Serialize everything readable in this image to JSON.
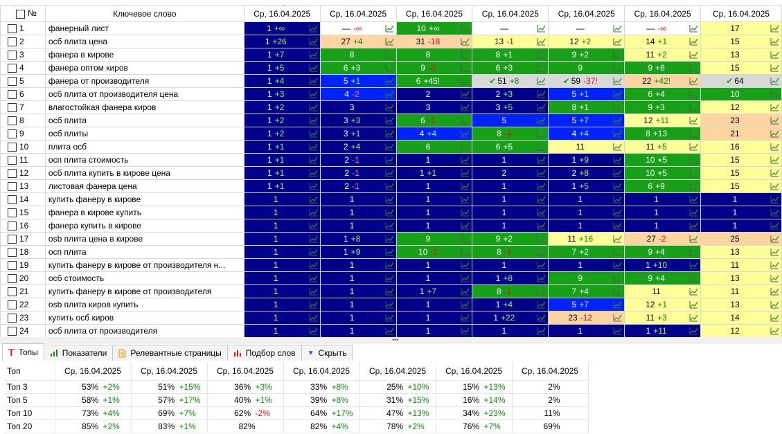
{
  "header": {
    "num": "№",
    "keyword": "Ключевое слово",
    "dates": [
      "Ср, 16.04.2025",
      "Ср, 16.04.2025",
      "Ср, 16.04.2025",
      "Ср, 16.04.2025",
      "Ср, 16.04.2025",
      "Ср, 16.04.2025",
      "Ср, 16.04.2025"
    ]
  },
  "colors": {
    "dark": "#00008b",
    "blue": "#0022ff",
    "green": "#18a018",
    "yellow": "#ffff99",
    "orange": "#fcd5a0",
    "gray": "#d9d9d9"
  },
  "rows": [
    {
      "n": "1",
      "kw": "фанерный лист",
      "cells": [
        [
          "1",
          "+∞",
          "dark"
        ],
        [
          "—",
          "-∞",
          "white"
        ],
        [
          "10",
          "+∞",
          "green"
        ],
        [
          "—",
          "",
          "white"
        ],
        [
          "—",
          "",
          "white"
        ],
        [
          "—",
          "-∞",
          "white"
        ],
        [
          "17",
          "",
          "yellow"
        ]
      ]
    },
    {
      "n": "2",
      "kw": "осб плита цена",
      "cells": [
        [
          "1",
          "+26",
          "dark"
        ],
        [
          "27",
          "+4",
          "orange"
        ],
        [
          "31",
          "-18",
          "orange"
        ],
        [
          "13",
          "-1",
          "yellow"
        ],
        [
          "12",
          "+2",
          "yellow"
        ],
        [
          "14",
          "+1",
          "yellow"
        ],
        [
          "15",
          "",
          "yellow"
        ]
      ]
    },
    {
      "n": "3",
      "kw": "фанера в кирове",
      "cells": [
        [
          "1",
          "+7",
          "dark"
        ],
        [
          "8",
          "",
          "green"
        ],
        [
          "8",
          "",
          "green"
        ],
        [
          "8",
          "+1",
          "green"
        ],
        [
          "9",
          "+2",
          "green"
        ],
        [
          "11",
          "+2",
          "yellow"
        ],
        [
          "13",
          "",
          "yellow"
        ]
      ]
    },
    {
      "n": "4",
      "kw": "фанера оптом киров",
      "cells": [
        [
          "1",
          "+5",
          "dark"
        ],
        [
          "6",
          "+3",
          "green"
        ],
        [
          "9",
          "-3",
          "green"
        ],
        [
          "6",
          "+3",
          "green"
        ],
        [
          "9",
          "",
          "green"
        ],
        [
          "9",
          "+6",
          "green"
        ],
        [
          "15",
          "",
          "yellow"
        ]
      ]
    },
    {
      "n": "5",
      "kw": "фанера от производителя",
      "cells": [
        [
          "1",
          "+4",
          "dark"
        ],
        [
          "5",
          "+1",
          "blue"
        ],
        [
          "6",
          "+45!",
          "green"
        ],
        [
          "✔ 51",
          "+8",
          "gray"
        ],
        [
          "✔ 59",
          "-37!",
          "gray"
        ],
        [
          "22",
          "+42!",
          "orange"
        ],
        [
          "✔ 64",
          "",
          "gray"
        ]
      ]
    },
    {
      "n": "6",
      "kw": "осб плита от производителя цена",
      "cells": [
        [
          "1",
          "+3",
          "dark"
        ],
        [
          "4",
          "-2",
          "blue"
        ],
        [
          "2",
          "",
          "dark"
        ],
        [
          "2",
          "+3",
          "dark"
        ],
        [
          "5",
          "+1",
          "blue"
        ],
        [
          "6",
          "+4",
          "green"
        ],
        [
          "10",
          "",
          "green"
        ]
      ]
    },
    {
      "n": "7",
      "kw": "влагостойкая фанера киров",
      "cells": [
        [
          "1",
          "+2",
          "dark"
        ],
        [
          "3",
          "",
          "dark"
        ],
        [
          "3",
          "",
          "dark"
        ],
        [
          "3",
          "+5",
          "dark"
        ],
        [
          "8",
          "+1",
          "green"
        ],
        [
          "9",
          "+3",
          "green"
        ],
        [
          "12",
          "",
          "yellow"
        ]
      ]
    },
    {
      "n": "8",
      "kw": "осб плита",
      "cells": [
        [
          "1",
          "+2",
          "dark"
        ],
        [
          "3",
          "+3",
          "dark"
        ],
        [
          "6",
          "-1",
          "green"
        ],
        [
          "5",
          "",
          "blue"
        ],
        [
          "5",
          "+7",
          "blue"
        ],
        [
          "12",
          "+11",
          "yellow"
        ],
        [
          "23",
          "",
          "orange"
        ]
      ]
    },
    {
      "n": "9",
      "kw": "осб плиты",
      "cells": [
        [
          "1",
          "+2",
          "dark"
        ],
        [
          "3",
          "+1",
          "dark"
        ],
        [
          "4",
          "+4",
          "blue"
        ],
        [
          "8",
          "-4",
          "green"
        ],
        [
          "4",
          "+4",
          "blue"
        ],
        [
          "8",
          "+13",
          "green"
        ],
        [
          "21",
          "",
          "orange"
        ]
      ]
    },
    {
      "n": "10",
      "kw": "плита осб",
      "cells": [
        [
          "1",
          "+1",
          "dark"
        ],
        [
          "2",
          "+4",
          "dark"
        ],
        [
          "6",
          "",
          "green"
        ],
        [
          "6",
          "+5",
          "green"
        ],
        [
          "11",
          "",
          "yellow"
        ],
        [
          "11",
          "+5",
          "yellow"
        ],
        [
          "16",
          "",
          "yellow"
        ]
      ]
    },
    {
      "n": "11",
      "kw": "осп плита стоимость",
      "cells": [
        [
          "1",
          "+1",
          "dark"
        ],
        [
          "2",
          "-1",
          "dark"
        ],
        [
          "1",
          "",
          "dark"
        ],
        [
          "1",
          "",
          "dark"
        ],
        [
          "1",
          "+9",
          "dark"
        ],
        [
          "10",
          "+5",
          "green"
        ],
        [
          "15",
          "",
          "yellow"
        ]
      ]
    },
    {
      "n": "12",
      "kw": "осб плита купить в кирове цена",
      "cells": [
        [
          "1",
          "+1",
          "dark"
        ],
        [
          "2",
          "-1",
          "dark"
        ],
        [
          "1",
          "+1",
          "dark"
        ],
        [
          "2",
          "",
          "dark"
        ],
        [
          "2",
          "+8",
          "dark"
        ],
        [
          "10",
          "+5",
          "green"
        ],
        [
          "15",
          "",
          "yellow"
        ]
      ]
    },
    {
      "n": "13",
      "kw": "листовая фанера цена",
      "cells": [
        [
          "1",
          "+1",
          "dark"
        ],
        [
          "2",
          "-1",
          "dark"
        ],
        [
          "1",
          "",
          "dark"
        ],
        [
          "1",
          "",
          "dark"
        ],
        [
          "1",
          "+5",
          "dark"
        ],
        [
          "6",
          "+9",
          "green"
        ],
        [
          "15",
          "",
          "yellow"
        ]
      ]
    },
    {
      "n": "14",
      "kw": "купить фанеру в кирове",
      "cells": [
        [
          "1",
          "",
          "dark"
        ],
        [
          "1",
          "",
          "dark"
        ],
        [
          "1",
          "",
          "dark"
        ],
        [
          "1",
          "",
          "dark"
        ],
        [
          "1",
          "",
          "dark"
        ],
        [
          "1",
          "",
          "dark"
        ],
        [
          "1",
          "",
          "dark"
        ]
      ]
    },
    {
      "n": "15",
      "kw": "фанера в кирове купить",
      "cells": [
        [
          "1",
          "",
          "dark"
        ],
        [
          "1",
          "",
          "dark"
        ],
        [
          "1",
          "",
          "dark"
        ],
        [
          "1",
          "",
          "dark"
        ],
        [
          "1",
          "",
          "dark"
        ],
        [
          "1",
          "",
          "dark"
        ],
        [
          "1",
          "",
          "dark"
        ]
      ]
    },
    {
      "n": "16",
      "kw": "фанера купить в кирове",
      "cells": [
        [
          "1",
          "",
          "dark"
        ],
        [
          "1",
          "",
          "dark"
        ],
        [
          "1",
          "",
          "dark"
        ],
        [
          "1",
          "",
          "dark"
        ],
        [
          "1",
          "",
          "dark"
        ],
        [
          "1",
          "",
          "dark"
        ],
        [
          "1",
          "",
          "dark"
        ]
      ]
    },
    {
      "n": "17",
      "kw": "osb плита цена в кирове",
      "cells": [
        [
          "1",
          "",
          "dark"
        ],
        [
          "1",
          "+8",
          "dark"
        ],
        [
          "9",
          "",
          "green"
        ],
        [
          "9",
          "+2",
          "green"
        ],
        [
          "11",
          "+16",
          "yellow"
        ],
        [
          "27",
          "-2",
          "orange"
        ],
        [
          "25",
          "",
          "orange"
        ]
      ]
    },
    {
      "n": "18",
      "kw": "осп плита",
      "cells": [
        [
          "1",
          "",
          "dark"
        ],
        [
          "1",
          "+9",
          "dark"
        ],
        [
          "10",
          "-2",
          "green"
        ],
        [
          "8",
          "-1",
          "green"
        ],
        [
          "7",
          "+2",
          "green"
        ],
        [
          "9",
          "+4",
          "green"
        ],
        [
          "13",
          "",
          "yellow"
        ]
      ]
    },
    {
      "n": "19",
      "kw": "купить фанеру в кирове от производителя н...",
      "cells": [
        [
          "1",
          "",
          "dark"
        ],
        [
          "1",
          "",
          "dark"
        ],
        [
          "1",
          "",
          "dark"
        ],
        [
          "1",
          "",
          "dark"
        ],
        [
          "1",
          "",
          "dark"
        ],
        [
          "1",
          "+10",
          "dark"
        ],
        [
          "11",
          "",
          "yellow"
        ]
      ]
    },
    {
      "n": "20",
      "kw": "осб стоимость",
      "cells": [
        [
          "1",
          "",
          "dark"
        ],
        [
          "1",
          "",
          "dark"
        ],
        [
          "1",
          "",
          "dark"
        ],
        [
          "1",
          "+8",
          "dark"
        ],
        [
          "9",
          "",
          "green"
        ],
        [
          "9",
          "+4",
          "green"
        ],
        [
          "13",
          "",
          "yellow"
        ]
      ]
    },
    {
      "n": "21",
      "kw": "купить фанеру в кирове от производителя",
      "cells": [
        [
          "1",
          "",
          "dark"
        ],
        [
          "1",
          "",
          "dark"
        ],
        [
          "1",
          "+7",
          "dark"
        ],
        [
          "8",
          "-1",
          "green"
        ],
        [
          "7",
          "+4",
          "green"
        ],
        [
          "11",
          "",
          "yellow"
        ],
        [
          "11",
          "",
          "yellow"
        ]
      ]
    },
    {
      "n": "22",
      "kw": "osb плита киров купить",
      "cells": [
        [
          "1",
          "",
          "dark"
        ],
        [
          "1",
          "",
          "dark"
        ],
        [
          "1",
          "",
          "dark"
        ],
        [
          "1",
          "+4",
          "dark"
        ],
        [
          "5",
          "+7",
          "blue"
        ],
        [
          "12",
          "+1",
          "yellow"
        ],
        [
          "13",
          "",
          "yellow"
        ]
      ]
    },
    {
      "n": "23",
      "kw": "купить осб киров",
      "cells": [
        [
          "1",
          "",
          "dark"
        ],
        [
          "1",
          "",
          "dark"
        ],
        [
          "1",
          "",
          "dark"
        ],
        [
          "1",
          "+22",
          "dark"
        ],
        [
          "23",
          "-12",
          "orange"
        ],
        [
          "11",
          "+3",
          "yellow"
        ],
        [
          "14",
          "",
          "yellow"
        ]
      ]
    },
    {
      "n": "24",
      "kw": "осб плита от производителя",
      "cells": [
        [
          "1",
          "",
          "dark"
        ],
        [
          "1",
          "",
          "dark"
        ],
        [
          "1",
          "",
          "dark"
        ],
        [
          "1",
          "",
          "dark"
        ],
        [
          "1",
          "",
          "dark"
        ],
        [
          "1",
          "+11",
          "dark"
        ],
        [
          "12",
          "",
          "yellow"
        ]
      ]
    }
  ],
  "tabs": [
    {
      "icon": "T",
      "label": "Топы",
      "active": true
    },
    {
      "icon": "bars",
      "label": "Показатели",
      "active": false
    },
    {
      "icon": "doc",
      "label": "Релевантные страницы",
      "active": false
    },
    {
      "icon": "bars-red",
      "label": "Подбор слов",
      "active": false
    },
    {
      "icon": "arrow-down",
      "label": "Скрыть",
      "active": false
    }
  ],
  "summary": {
    "label_header": "Топ",
    "dates": [
      "Ср, 16.04.2025",
      "Ср, 16.04.2025",
      "Ср, 16.04.2025",
      "Ср, 16.04.2025",
      "Ср, 16.04.2025",
      "Ср, 16.04.2025",
      "Ср, 16.04.2025"
    ],
    "rows": [
      {
        "label": "Топ 3",
        "cells": [
          [
            "53%",
            "+2%"
          ],
          [
            "51%",
            "+15%"
          ],
          [
            "36%",
            "+3%"
          ],
          [
            "33%",
            "+8%"
          ],
          [
            "25%",
            "+10%"
          ],
          [
            "15%",
            "+13%"
          ],
          [
            "2%",
            ""
          ]
        ]
      },
      {
        "label": "Топ 5",
        "cells": [
          [
            "58%",
            "+1%"
          ],
          [
            "57%",
            "+17%"
          ],
          [
            "40%",
            "+1%"
          ],
          [
            "39%",
            "+8%"
          ],
          [
            "31%",
            "+15%"
          ],
          [
            "16%",
            "+14%"
          ],
          [
            "2%",
            ""
          ]
        ]
      },
      {
        "label": "Топ 10",
        "cells": [
          [
            "73%",
            "+4%"
          ],
          [
            "69%",
            "+7%"
          ],
          [
            "62%",
            "-2%"
          ],
          [
            "64%",
            "+17%"
          ],
          [
            "47%",
            "+13%"
          ],
          [
            "34%",
            "+23%"
          ],
          [
            "11%",
            ""
          ]
        ]
      },
      {
        "label": "Топ 20",
        "cells": [
          [
            "85%",
            "+2%"
          ],
          [
            "83%",
            "+1%"
          ],
          [
            "82%",
            ""
          ],
          [
            "82%",
            "+4%"
          ],
          [
            "78%",
            "+2%"
          ],
          [
            "76%",
            "+7%"
          ],
          [
            "69%",
            ""
          ]
        ]
      }
    ]
  }
}
